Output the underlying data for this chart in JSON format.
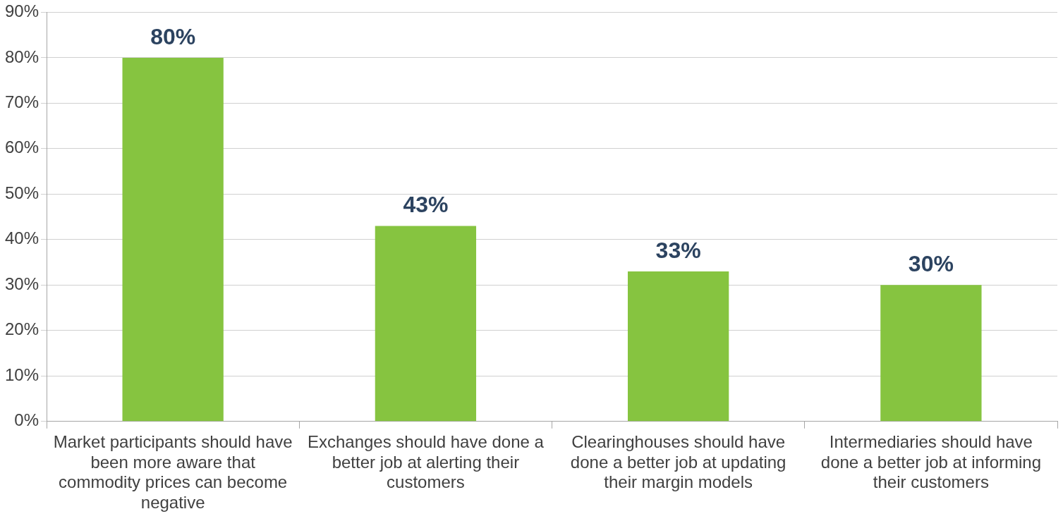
{
  "chart_data": {
    "type": "bar",
    "categories": [
      "Market participants should have been more aware that commodity prices can become negative",
      "Exchanges should have done a better job at alerting their customers",
      "Clearinghouses should have done a better job at updating their margin models",
      "Intermediaries should have done a better job at informing their customers"
    ],
    "values": [
      80,
      43,
      33,
      30
    ],
    "value_labels": [
      "80%",
      "43%",
      "33%",
      "30%"
    ],
    "color": "#86c440",
    "ylim": [
      0,
      90
    ],
    "yticks": [
      {
        "value": 0,
        "label": "0%"
      },
      {
        "value": 10,
        "label": "10%"
      },
      {
        "value": 20,
        "label": "20%"
      },
      {
        "value": 30,
        "label": "30%"
      },
      {
        "value": 40,
        "label": "40%"
      },
      {
        "value": 50,
        "label": "50%"
      },
      {
        "value": 60,
        "label": "60%"
      },
      {
        "value": 70,
        "label": "70%"
      },
      {
        "value": 80,
        "label": "80%"
      },
      {
        "value": 90,
        "label": "90%"
      }
    ],
    "grid": "y",
    "legend": false
  }
}
